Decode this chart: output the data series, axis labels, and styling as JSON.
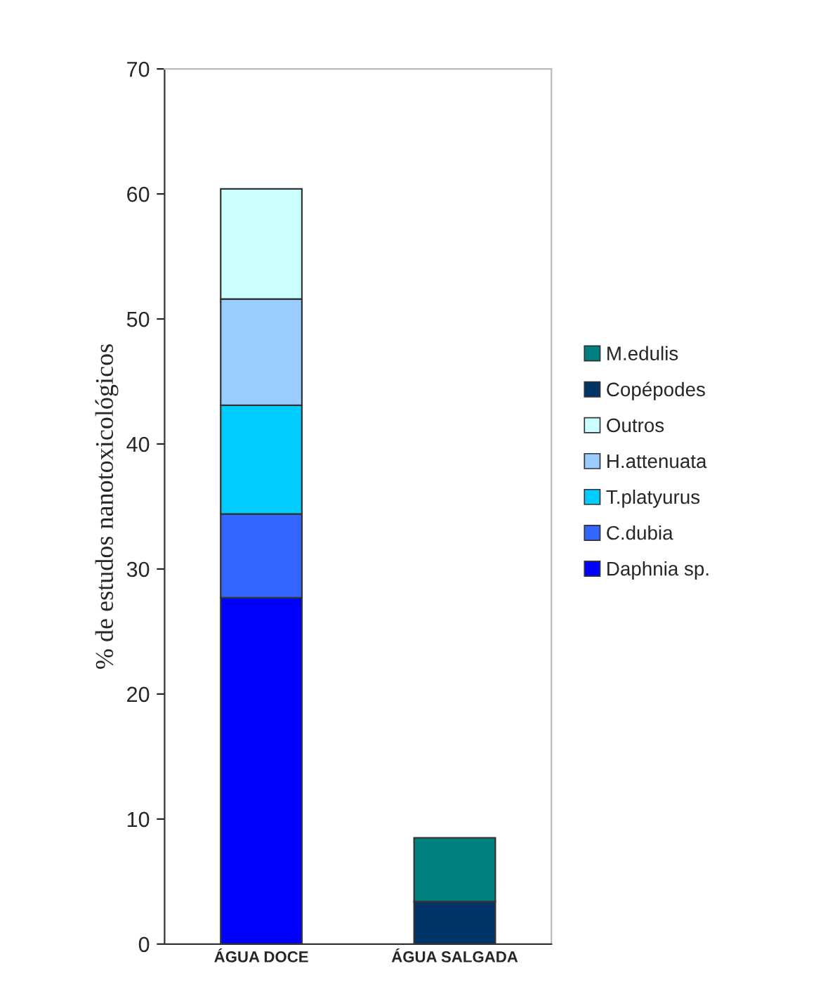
{
  "chart_data": {
    "type": "bar",
    "stacked": true,
    "ylabel": "% de estudos nanotoxicológicos",
    "categories": [
      "ÁGUA DOCE",
      "ÁGUA SALGADA"
    ],
    "series": [
      {
        "name": "Daphnia sp.",
        "color": "#0000ff",
        "values": [
          27.7,
          null
        ]
      },
      {
        "name": "C.dubia",
        "color": "#3366ff",
        "values": [
          6.7,
          null
        ]
      },
      {
        "name": "T.platyurus",
        "color": "#00ccff",
        "values": [
          8.7,
          null
        ]
      },
      {
        "name": "H.attenuata",
        "color": "#99ccff",
        "values": [
          8.5,
          null
        ]
      },
      {
        "name": "Outros",
        "color": "#ccffff",
        "values": [
          8.8,
          null
        ]
      },
      {
        "name": "Copépodes",
        "color": "#003366",
        "values": [
          null,
          3.4
        ]
      },
      {
        "name": "M.edulis",
        "color": "#008080",
        "values": [
          null,
          5.1
        ]
      }
    ],
    "ylim": [
      0,
      70
    ],
    "yticks": [
      0,
      10,
      20,
      30,
      40,
      50,
      60,
      70
    ],
    "grid": false,
    "legend": "right"
  }
}
